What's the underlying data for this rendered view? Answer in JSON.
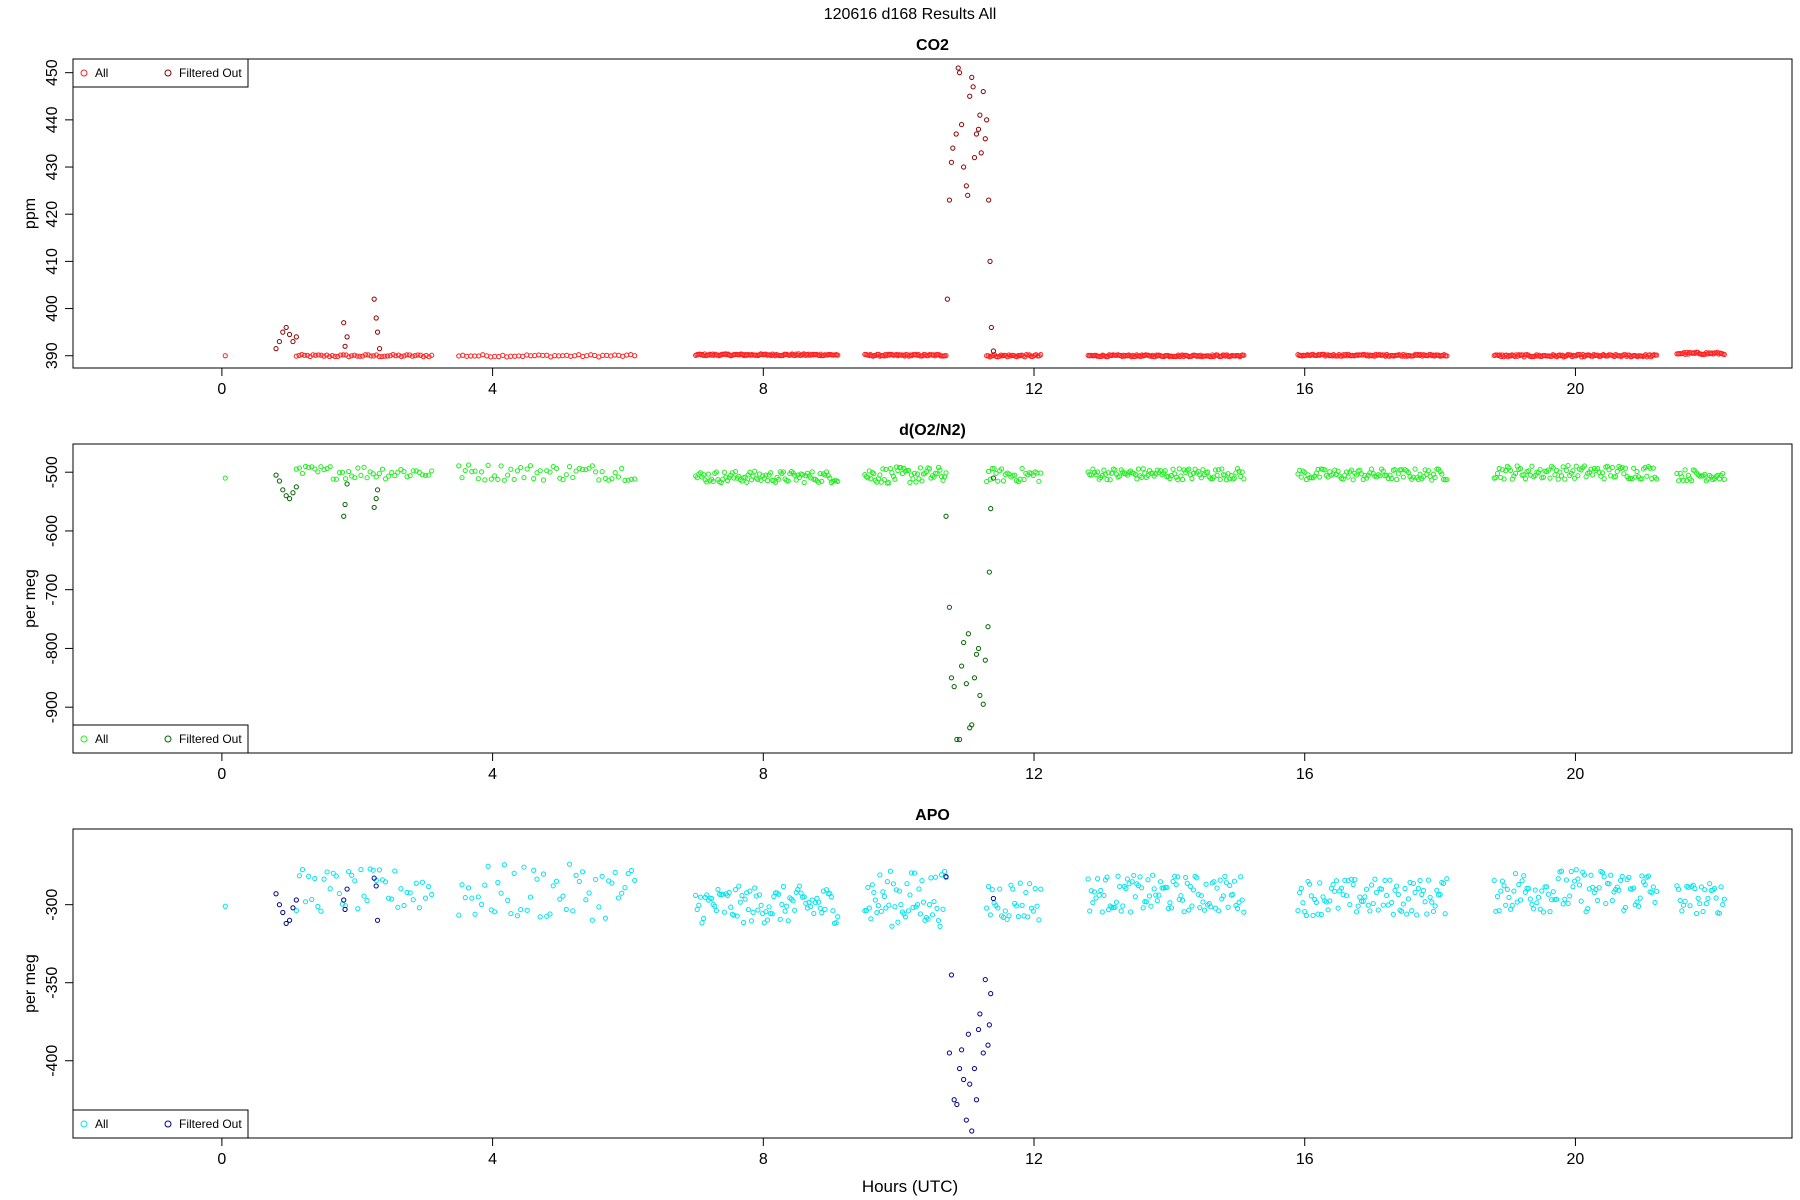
{
  "figure": {
    "title": "120616   d168   Results All",
    "xlabel": "Hours (UTC)"
  },
  "chart_data": [
    {
      "type": "scatter",
      "title": "CO2",
      "xlabel": "",
      "ylabel": "ppm",
      "xlim": [
        -2.2,
        23.2
      ],
      "ylim": [
        387.4,
        452.9
      ],
      "xticks": [
        0,
        4,
        8,
        12,
        16,
        20
      ],
      "yticks": [
        390,
        400,
        410,
        420,
        430,
        440,
        450
      ],
      "legend": {
        "placement": "top-left",
        "entries": [
          "All",
          "Filtered Out"
        ]
      },
      "colors": {
        "all": "#ff2020",
        "filtered": "#8b0000"
      },
      "series": [
        {
          "name": "All",
          "segments": [
            {
              "x0": 0.05,
              "x1": 0.05,
              "n": 1,
              "base": 390,
              "amp": 0
            },
            {
              "x0": 1.1,
              "x1": 3.1,
              "n": 50,
              "base": 390,
              "amp": 0.25
            },
            {
              "x0": 3.5,
              "x1": 6.1,
              "n": 45,
              "base": 390,
              "amp": 0.25
            },
            {
              "x0": 7.0,
              "x1": 9.1,
              "n": 110,
              "base": 390.2,
              "amp": 0.2
            },
            {
              "x0": 9.5,
              "x1": 10.7,
              "n": 60,
              "base": 390.1,
              "amp": 0.2
            },
            {
              "x0": 11.3,
              "x1": 12.1,
              "n": 35,
              "base": 390,
              "amp": 0.25
            },
            {
              "x0": 12.8,
              "x1": 15.1,
              "n": 120,
              "base": 390,
              "amp": 0.2
            },
            {
              "x0": 15.9,
              "x1": 18.1,
              "n": 110,
              "base": 390.1,
              "amp": 0.2
            },
            {
              "x0": 18.8,
              "x1": 21.2,
              "n": 120,
              "base": 390,
              "amp": 0.25
            },
            {
              "x0": 21.5,
              "x1": 22.2,
              "n": 35,
              "base": 390.5,
              "amp": 0.25
            }
          ]
        },
        {
          "name": "Filtered Out",
          "points": [
            [
              0.8,
              391.5
            ],
            [
              0.85,
              393
            ],
            [
              0.9,
              395
            ],
            [
              0.95,
              396
            ],
            [
              1.0,
              394.5
            ],
            [
              1.05,
              393
            ],
            [
              1.1,
              394
            ],
            [
              1.8,
              397
            ],
            [
              1.82,
              392
            ],
            [
              1.85,
              394
            ],
            [
              2.25,
              402
            ],
            [
              2.28,
              398
            ],
            [
              2.3,
              395
            ],
            [
              2.33,
              391.5
            ],
            [
              10.72,
              402
            ],
            [
              10.75,
              423
            ],
            [
              10.78,
              431
            ],
            [
              10.8,
              434
            ],
            [
              10.85,
              437
            ],
            [
              10.88,
              451
            ],
            [
              10.9,
              450
            ],
            [
              10.93,
              439
            ],
            [
              10.96,
              430
            ],
            [
              11.0,
              426
            ],
            [
              11.02,
              424
            ],
            [
              11.05,
              445
            ],
            [
              11.08,
              449
            ],
            [
              11.1,
              447
            ],
            [
              11.12,
              432
            ],
            [
              11.15,
              437
            ],
            [
              11.18,
              438
            ],
            [
              11.2,
              441
            ],
            [
              11.22,
              433
            ],
            [
              11.25,
              446
            ],
            [
              11.28,
              436
            ],
            [
              11.3,
              440
            ],
            [
              11.33,
              423
            ],
            [
              11.35,
              410
            ],
            [
              11.37,
              396
            ],
            [
              11.4,
              391
            ]
          ]
        }
      ]
    },
    {
      "type": "scatter",
      "title": "d(O2/N2)",
      "xlabel": "",
      "ylabel": "per meg",
      "xlim": [
        -2.2,
        23.2
      ],
      "ylim": [
        -978,
        -452
      ],
      "xticks": [
        0,
        4,
        8,
        12,
        16,
        20
      ],
      "yticks": [
        -500,
        -600,
        -700,
        -800,
        -900
      ],
      "legend": {
        "placement": "bottom-left",
        "entries": [
          "All",
          "Filtered Out"
        ]
      },
      "colors": {
        "all": "#22ee22",
        "filtered": "#006400"
      },
      "series": [
        {
          "name": "All",
          "segments": [
            {
              "x0": 0.05,
              "x1": 0.05,
              "n": 1,
              "base": -510,
              "amp": 0
            },
            {
              "x0": 1.1,
              "x1": 3.1,
              "n": 45,
              "base": -500,
              "amp": 12
            },
            {
              "x0": 3.5,
              "x1": 6.1,
              "n": 55,
              "base": -500,
              "amp": 14
            },
            {
              "x0": 7.0,
              "x1": 9.1,
              "n": 90,
              "base": -508,
              "amp": 10
            },
            {
              "x0": 9.5,
              "x1": 10.7,
              "n": 55,
              "base": -505,
              "amp": 14
            },
            {
              "x0": 11.3,
              "x1": 12.1,
              "n": 30,
              "base": -505,
              "amp": 12
            },
            {
              "x0": 12.8,
              "x1": 15.1,
              "n": 100,
              "base": -503,
              "amp": 10
            },
            {
              "x0": 15.9,
              "x1": 18.1,
              "n": 90,
              "base": -504,
              "amp": 10
            },
            {
              "x0": 18.8,
              "x1": 21.2,
              "n": 100,
              "base": -500,
              "amp": 12
            },
            {
              "x0": 21.5,
              "x1": 22.2,
              "n": 30,
              "base": -505,
              "amp": 10
            }
          ]
        },
        {
          "name": "Filtered Out",
          "points": [
            [
              0.8,
              -505
            ],
            [
              0.85,
              -515
            ],
            [
              0.9,
              -530
            ],
            [
              0.95,
              -540
            ],
            [
              1.0,
              -545
            ],
            [
              1.05,
              -535
            ],
            [
              1.1,
              -525
            ],
            [
              1.8,
              -575
            ],
            [
              1.82,
              -555
            ],
            [
              1.85,
              -520
            ],
            [
              2.25,
              -560
            ],
            [
              2.28,
              -545
            ],
            [
              2.3,
              -530
            ],
            [
              10.7,
              -575
            ],
            [
              10.75,
              -730
            ],
            [
              10.78,
              -850
            ],
            [
              10.82,
              -865
            ],
            [
              10.86,
              -955
            ],
            [
              10.9,
              -955
            ],
            [
              10.93,
              -830
            ],
            [
              10.96,
              -790
            ],
            [
              11.0,
              -860
            ],
            [
              11.03,
              -775
            ],
            [
              11.05,
              -935
            ],
            [
              11.08,
              -930
            ],
            [
              11.12,
              -850
            ],
            [
              11.15,
              -810
            ],
            [
              11.18,
              -800
            ],
            [
              11.2,
              -880
            ],
            [
              11.25,
              -895
            ],
            [
              11.28,
              -820
            ],
            [
              11.32,
              -763
            ],
            [
              11.34,
              -670
            ],
            [
              11.36,
              -562
            ],
            [
              11.4,
              -510
            ]
          ]
        }
      ]
    },
    {
      "type": "scatter",
      "title": "APO",
      "xlabel": "Hours (UTC)",
      "ylabel": "per meg",
      "xlim": [
        -2.2,
        23.2
      ],
      "ylim": [
        -449.5,
        -251.5
      ],
      "xticks": [
        0,
        4,
        8,
        12,
        16,
        20
      ],
      "yticks": [
        -300,
        -350,
        -400
      ],
      "legend": {
        "placement": "bottom-left",
        "entries": [
          "All",
          "Filtered Out"
        ]
      },
      "colors": {
        "all": "#00e5ee",
        "filtered": "#00008b"
      },
      "series": [
        {
          "name": "All",
          "segments": [
            {
              "x0": 0.05,
              "x1": 0.05,
              "n": 1,
              "base": -301,
              "amp": 0
            },
            {
              "x0": 1.1,
              "x1": 3.1,
              "n": 45,
              "base": -291,
              "amp": 14
            },
            {
              "x0": 3.5,
              "x1": 6.1,
              "n": 55,
              "base": -292,
              "amp": 18
            },
            {
              "x0": 7.0,
              "x1": 9.1,
              "n": 90,
              "base": -300,
              "amp": 12
            },
            {
              "x0": 9.5,
              "x1": 10.7,
              "n": 55,
              "base": -296,
              "amp": 18
            },
            {
              "x0": 11.3,
              "x1": 12.1,
              "n": 30,
              "base": -297,
              "amp": 14
            },
            {
              "x0": 12.8,
              "x1": 15.1,
              "n": 100,
              "base": -293,
              "amp": 12
            },
            {
              "x0": 15.9,
              "x1": 18.1,
              "n": 90,
              "base": -295,
              "amp": 12
            },
            {
              "x0": 18.8,
              "x1": 21.2,
              "n": 100,
              "base": -291,
              "amp": 14
            },
            {
              "x0": 21.5,
              "x1": 22.2,
              "n": 30,
              "base": -296,
              "amp": 10
            }
          ]
        },
        {
          "name": "Filtered Out",
          "points": [
            [
              0.8,
              -293
            ],
            [
              0.85,
              -300
            ],
            [
              0.9,
              -305
            ],
            [
              0.95,
              -312
            ],
            [
              1.0,
              -310
            ],
            [
              1.05,
              -302
            ],
            [
              1.1,
              -297
            ],
            [
              1.8,
              -297
            ],
            [
              1.82,
              -303
            ],
            [
              1.85,
              -290
            ],
            [
              2.25,
              -283
            ],
            [
              2.28,
              -288
            ],
            [
              2.3,
              -310
            ],
            [
              10.7,
              -282
            ],
            [
              10.75,
              -395
            ],
            [
              10.78,
              -345
            ],
            [
              10.82,
              -425
            ],
            [
              10.86,
              -428
            ],
            [
              10.9,
              -405
            ],
            [
              10.93,
              -393
            ],
            [
              10.96,
              -412
            ],
            [
              11.0,
              -438
            ],
            [
              11.03,
              -383
            ],
            [
              11.05,
              -415
            ],
            [
              11.08,
              -445
            ],
            [
              11.12,
              -405
            ],
            [
              11.15,
              -425
            ],
            [
              11.18,
              -380
            ],
            [
              11.2,
              -370
            ],
            [
              11.25,
              -395
            ],
            [
              11.28,
              -348
            ],
            [
              11.32,
              -390
            ],
            [
              11.34,
              -377
            ],
            [
              11.36,
              -357
            ],
            [
              11.4,
              -296
            ]
          ]
        }
      ]
    }
  ]
}
